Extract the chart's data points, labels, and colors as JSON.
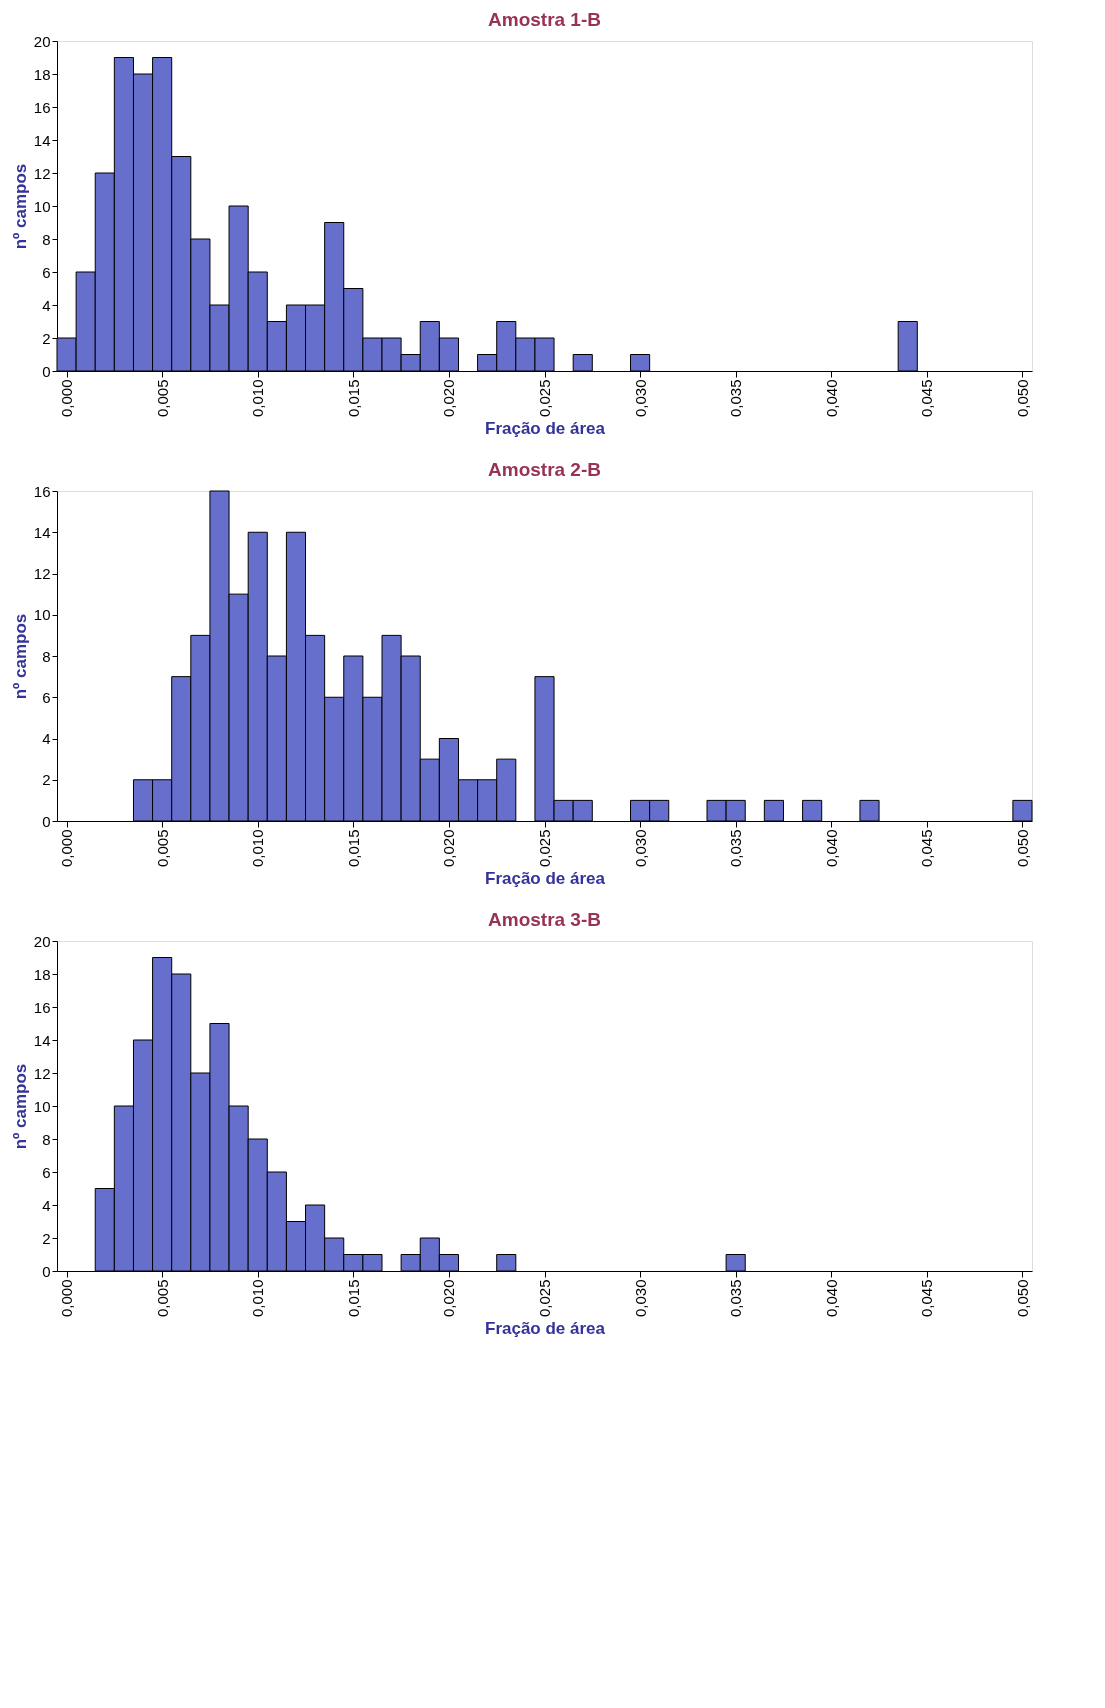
{
  "chart_data": [
    {
      "type": "histogram",
      "title": "Amostra 1-B",
      "xlabel": "Fração de área",
      "ylabel": "nº campos",
      "color": "#6670cc",
      "grid": false,
      "bins": [
        -0.0005,
        0.0005,
        0.0015,
        0.0025,
        0.0035,
        0.0045,
        0.0055,
        0.0065,
        0.0075,
        0.0085,
        0.0095,
        0.0105,
        0.0115,
        0.0125,
        0.0135,
        0.0145,
        0.0155,
        0.0165,
        0.0175,
        0.0185,
        0.0195,
        0.0205,
        0.0215,
        0.0225,
        0.0235,
        0.0245,
        0.0255,
        0.0265,
        0.0275,
        0.0285,
        0.0295,
        0.0305,
        0.0315,
        0.0325,
        0.0335,
        0.0345,
        0.0355,
        0.0365,
        0.0375,
        0.0385,
        0.0395,
        0.0405,
        0.0415,
        0.0425,
        0.0435,
        0.0445,
        0.0455,
        0.0465,
        0.0475,
        0.0485,
        0.0495,
        0.0505
      ],
      "values": [
        2,
        6,
        12,
        19,
        18,
        19,
        13,
        8,
        4,
        10,
        6,
        3,
        4,
        4,
        9,
        5,
        2,
        2,
        1,
        3,
        2,
        0,
        1,
        3,
        2,
        2,
        0,
        1,
        0,
        0,
        1,
        0,
        0,
        0,
        0,
        0,
        0,
        0,
        0,
        0,
        0,
        0,
        0,
        0,
        3,
        0,
        0,
        0,
        0,
        0,
        0
      ],
      "xlim": [
        -0.0005,
        0.0505
      ],
      "xticks": [
        {
          "value": 0,
          "label": "0,000"
        },
        {
          "value": 0.005,
          "label": "0,005"
        },
        {
          "value": 0.01,
          "label": "0,010"
        },
        {
          "value": 0.015,
          "label": "0,015"
        },
        {
          "value": 0.02,
          "label": "0,020"
        },
        {
          "value": 0.025,
          "label": "0,025"
        },
        {
          "value": 0.03,
          "label": "0,030"
        },
        {
          "value": 0.035,
          "label": "0,035"
        },
        {
          "value": 0.04,
          "label": "0,040"
        },
        {
          "value": 0.045,
          "label": "0,045"
        },
        {
          "value": 0.05,
          "label": "0,050"
        }
      ],
      "ylim": [
        0,
        20
      ],
      "yticks": [
        0,
        2,
        4,
        6,
        8,
        10,
        12,
        14,
        16,
        18,
        20
      ]
    },
    {
      "type": "histogram",
      "title": "Amostra 2-B",
      "xlabel": "Fração de área",
      "ylabel": "nº campos",
      "color": "#6670cc",
      "grid": false,
      "bins": [
        -0.0005,
        0.0005,
        0.0015,
        0.0025,
        0.0035,
        0.0045,
        0.0055,
        0.0065,
        0.0075,
        0.0085,
        0.0095,
        0.0105,
        0.0115,
        0.0125,
        0.0135,
        0.0145,
        0.0155,
        0.0165,
        0.0175,
        0.0185,
        0.0195,
        0.0205,
        0.0215,
        0.0225,
        0.0235,
        0.0245,
        0.0255,
        0.0265,
        0.0275,
        0.0285,
        0.0295,
        0.0305,
        0.0315,
        0.0325,
        0.0335,
        0.0345,
        0.0355,
        0.0365,
        0.0375,
        0.0385,
        0.0395,
        0.0405,
        0.0415,
        0.0425,
        0.0435,
        0.0445,
        0.0455,
        0.0465,
        0.0475,
        0.0485,
        0.0495,
        0.0505
      ],
      "values": [
        0,
        0,
        0,
        0,
        2,
        2,
        7,
        9,
        16,
        11,
        14,
        8,
        14,
        9,
        6,
        8,
        6,
        9,
        8,
        3,
        4,
        2,
        2,
        3,
        0,
        7,
        1,
        1,
        0,
        0,
        1,
        1,
        0,
        0,
        1,
        1,
        0,
        1,
        0,
        1,
        0,
        0,
        1,
        0,
        0,
        0,
        0,
        0,
        0,
        0,
        1
      ],
      "xlim": [
        -0.0005,
        0.0505
      ],
      "xticks": [
        {
          "value": 0,
          "label": "0,000"
        },
        {
          "value": 0.005,
          "label": "0,005"
        },
        {
          "value": 0.01,
          "label": "0,010"
        },
        {
          "value": 0.015,
          "label": "0,015"
        },
        {
          "value": 0.02,
          "label": "0,020"
        },
        {
          "value": 0.025,
          "label": "0,025"
        },
        {
          "value": 0.03,
          "label": "0,030"
        },
        {
          "value": 0.035,
          "label": "0,035"
        },
        {
          "value": 0.04,
          "label": "0,040"
        },
        {
          "value": 0.045,
          "label": "0,045"
        },
        {
          "value": 0.05,
          "label": "0,050"
        }
      ],
      "ylim": [
        0,
        16
      ],
      "yticks": [
        0,
        2,
        4,
        6,
        8,
        10,
        12,
        14,
        16
      ]
    },
    {
      "type": "histogram",
      "title": "Amostra 3-B",
      "xlabel": "Fração de área",
      "ylabel": "nº campos",
      "color": "#6670cc",
      "grid": false,
      "bins": [
        -0.0005,
        0.0005,
        0.0015,
        0.0025,
        0.0035,
        0.0045,
        0.0055,
        0.0065,
        0.0075,
        0.0085,
        0.0095,
        0.0105,
        0.0115,
        0.0125,
        0.0135,
        0.0145,
        0.0155,
        0.0165,
        0.0175,
        0.0185,
        0.0195,
        0.0205,
        0.0215,
        0.0225,
        0.0235,
        0.0245,
        0.0255,
        0.0265,
        0.0275,
        0.0285,
        0.0295,
        0.0305,
        0.0315,
        0.0325,
        0.0335,
        0.0345,
        0.0355,
        0.0365,
        0.0375,
        0.0385,
        0.0395,
        0.0405,
        0.0415,
        0.0425,
        0.0435,
        0.0445,
        0.0455,
        0.0465,
        0.0475,
        0.0485,
        0.0495,
        0.0505
      ],
      "values": [
        0,
        0,
        5,
        10,
        14,
        19,
        18,
        12,
        15,
        10,
        8,
        6,
        3,
        4,
        2,
        1,
        1,
        0,
        1,
        2,
        1,
        0,
        0,
        1,
        0,
        0,
        0,
        0,
        0,
        0,
        0,
        0,
        0,
        0,
        0,
        1,
        0,
        0,
        0,
        0,
        0,
        0,
        0,
        0,
        0,
        0,
        0,
        0,
        0,
        0,
        0
      ],
      "xlim": [
        -0.0005,
        0.0505
      ],
      "xticks": [
        {
          "value": 0,
          "label": "0,000"
        },
        {
          "value": 0.005,
          "label": "0,005"
        },
        {
          "value": 0.01,
          "label": "0,010"
        },
        {
          "value": 0.015,
          "label": "0,015"
        },
        {
          "value": 0.02,
          "label": "0,020"
        },
        {
          "value": 0.025,
          "label": "0,025"
        },
        {
          "value": 0.03,
          "label": "0,030"
        },
        {
          "value": 0.035,
          "label": "0,035"
        },
        {
          "value": 0.04,
          "label": "0,040"
        },
        {
          "value": 0.045,
          "label": "0,045"
        },
        {
          "value": 0.05,
          "label": "0,050"
        }
      ],
      "ylim": [
        0,
        20
      ],
      "yticks": [
        0,
        2,
        4,
        6,
        8,
        10,
        12,
        14,
        16,
        18,
        20
      ]
    }
  ]
}
